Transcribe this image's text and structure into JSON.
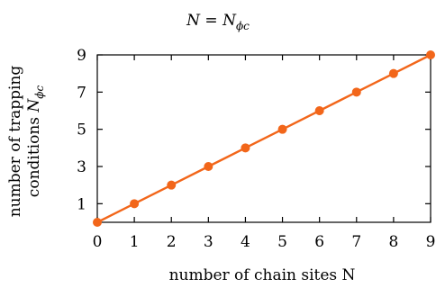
{
  "chart_data": {
    "type": "line",
    "title": {
      "main": "N = N",
      "sub": "ϕc"
    },
    "xlabel": "number of chain sites N",
    "ylabel": {
      "line1": "number of trapping",
      "line2_prefix": "conditions ",
      "line2_var": "N",
      "line2_sub": "ϕc"
    },
    "xlim": [
      0,
      9
    ],
    "ylim": [
      0,
      9
    ],
    "xticks": [
      0,
      1,
      2,
      3,
      4,
      5,
      6,
      7,
      8,
      9
    ],
    "yticks": [
      1,
      3,
      5,
      7,
      9
    ],
    "grid": false,
    "series": [
      {
        "x": [
          0,
          1,
          2,
          3,
          4,
          5,
          6,
          7,
          8,
          9
        ],
        "y": [
          0,
          1,
          2,
          3,
          4,
          5,
          6,
          7,
          8,
          9
        ],
        "color": "#f2661a",
        "marker": "circle"
      }
    ],
    "axis_color": "#000000"
  }
}
